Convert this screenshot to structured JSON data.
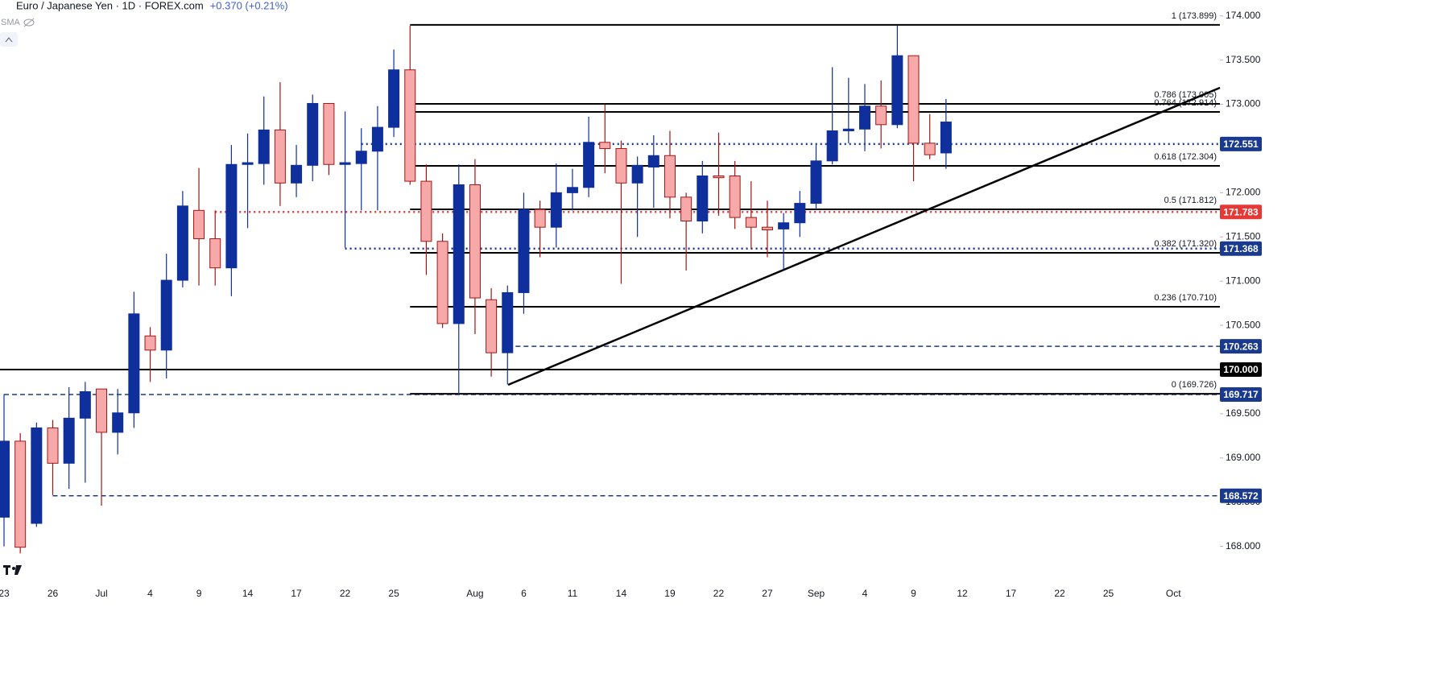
{
  "chart_data": {
    "type": "candlestick",
    "title": "Euro / Japanese Yen · 1D · FOREX.com",
    "change": "+0.370 (+0.21%)",
    "indicator": "SMA",
    "categories": [
      "23",
      null,
      null,
      "26",
      null,
      null,
      "Jul",
      null,
      null,
      "4",
      null,
      null,
      "9",
      null,
      null,
      "14",
      null,
      null,
      "17",
      null,
      null,
      "22",
      null,
      null,
      "25",
      null,
      null,
      null,
      null,
      "Aug",
      null,
      null,
      "6",
      null,
      null,
      "11",
      null,
      null,
      "14",
      null,
      null,
      "19",
      null,
      null,
      "22",
      null,
      null,
      "27",
      null,
      null,
      "Sep",
      null,
      null,
      "4",
      null,
      null,
      "9",
      null,
      null,
      "12",
      null,
      null,
      "17",
      null,
      null,
      "22",
      null,
      null,
      "25",
      null,
      null,
      null,
      "Oct"
    ],
    "open": [
      168.33,
      169.19,
      168.26,
      169.34,
      168.94,
      169.45,
      169.78,
      169.29,
      169.51,
      170.38,
      170.22,
      171.01,
      171.8,
      171.48,
      171.15,
      172.32,
      172.33,
      172.71,
      172.11,
      172.31,
      173.01,
      172.32,
      172.33,
      172.47,
      172.74,
      173.39,
      172.13,
      171.45,
      170.52,
      172.09,
      170.79,
      170.19,
      170.87,
      171.81,
      171.61,
      172.0,
      172.06,
      172.57,
      172.5,
      172.11,
      172.29,
      172.42,
      171.95,
      171.68,
      172.19,
      172.19,
      171.72,
      171.61,
      171.59,
      171.66,
      171.88,
      172.36,
      172.7,
      172.72,
      172.98,
      172.77,
      173.55,
      172.56,
      172.45,
      null,
      null,
      null,
      null,
      null,
      null,
      null,
      null,
      null,
      null,
      null,
      null,
      null,
      null
    ],
    "high": [
      169.72,
      169.28,
      169.4,
      169.43,
      169.8,
      169.86,
      169.78,
      169.78,
      170.88,
      170.48,
      171.31,
      172.02,
      172.28,
      171.8,
      172.54,
      172.67,
      173.09,
      173.25,
      172.54,
      173.11,
      173.01,
      172.92,
      172.73,
      172.98,
      173.62,
      173.89,
      172.32,
      171.54,
      172.32,
      172.38,
      170.92,
      170.95,
      172.0,
      171.91,
      172.33,
      172.27,
      172.86,
      173.0,
      172.59,
      172.41,
      172.65,
      172.7,
      172.0,
      172.36,
      172.68,
      172.36,
      172.13,
      171.91,
      171.77,
      172.02,
      172.54,
      173.42,
      173.3,
      173.23,
      173.27,
      173.89,
      173.55,
      172.89,
      173.06,
      null,
      null,
      null,
      null,
      null,
      null,
      null,
      null,
      null,
      null,
      null,
      null,
      null,
      null
    ],
    "low": [
      168.0,
      167.92,
      168.22,
      168.58,
      168.65,
      168.72,
      168.46,
      169.04,
      169.34,
      169.86,
      169.9,
      170.93,
      170.95,
      170.95,
      170.83,
      171.6,
      172.09,
      171.85,
      171.95,
      172.13,
      172.2,
      171.38,
      171.8,
      171.8,
      172.63,
      172.09,
      171.07,
      170.47,
      169.72,
      170.4,
      169.92,
      169.83,
      170.63,
      171.27,
      171.38,
      171.8,
      171.95,
      172.22,
      170.97,
      171.5,
      171.83,
      171.71,
      171.12,
      171.54,
      171.74,
      171.59,
      171.36,
      171.27,
      171.13,
      171.5,
      171.81,
      172.32,
      172.56,
      172.47,
      172.5,
      172.73,
      172.13,
      172.38,
      172.27,
      null,
      null,
      null,
      null,
      null,
      null,
      null,
      null,
      null,
      null,
      null,
      null,
      null,
      null
    ],
    "close": [
      169.19,
      167.99,
      169.34,
      168.94,
      169.45,
      169.75,
      169.29,
      169.51,
      170.63,
      170.22,
      171.01,
      171.85,
      171.48,
      171.15,
      172.32,
      172.34,
      172.71,
      172.11,
      172.31,
      173.01,
      172.32,
      172.34,
      172.47,
      172.74,
      173.39,
      172.13,
      171.45,
      170.52,
      172.09,
      170.81,
      170.19,
      170.87,
      171.81,
      171.61,
      172.0,
      172.06,
      172.57,
      172.5,
      172.11,
      172.31,
      172.42,
      171.95,
      171.68,
      172.19,
      172.17,
      171.72,
      171.61,
      171.58,
      171.66,
      171.88,
      172.36,
      172.7,
      172.72,
      172.98,
      172.77,
      173.55,
      172.56,
      172.43,
      172.8,
      null,
      null,
      null,
      null,
      null,
      null,
      null,
      null,
      null,
      null,
      null,
      null,
      null,
      null
    ],
    "up_color": "#0f2f9c",
    "down_color": "#f7a9a9",
    "down_edge": "#a31515",
    "ylim": [
      167.55,
      174.18
    ],
    "yticks": [
      {
        "value": 168,
        "label": "168.000"
      },
      {
        "value": 168.5,
        "label": "168.500"
      },
      {
        "value": 169,
        "label": "169.000"
      },
      {
        "value": 169.5,
        "label": "169.500"
      },
      {
        "value": 170,
        "label": "170.000"
      },
      {
        "value": 170.5,
        "label": "170.500"
      },
      {
        "value": 171,
        "label": "171.000"
      },
      {
        "value": 171.5,
        "label": "171.500"
      },
      {
        "value": 172,
        "label": "172.000"
      },
      {
        "value": 172.5,
        "label": "172.500"
      },
      {
        "value": 173,
        "label": "173.000"
      },
      {
        "value": 173.5,
        "label": "173.500"
      },
      {
        "value": 174,
        "label": "174.000"
      }
    ],
    "fib_levels": [
      {
        "value": 173.899,
        "label": "1 (173.899)"
      },
      {
        "value": 173.005,
        "label": "0.786 (173.005)"
      },
      {
        "value": 172.914,
        "label": "0.764 (172.914)"
      },
      {
        "value": 172.304,
        "label": "0.618 (172.304)"
      },
      {
        "value": 171.812,
        "label": "0.5 (171.812)"
      },
      {
        "value": 171.32,
        "label": "0.382 (171.320)"
      },
      {
        "value": 170.71,
        "label": "0.236 (170.710)"
      },
      {
        "value": 169.726,
        "label": "0 (169.726)"
      }
    ],
    "price_lines": [
      {
        "value": 172.551,
        "color": "#1a3a8f",
        "style": "dotted"
      },
      {
        "value": 171.783,
        "color": "#e53935",
        "style": "dotted"
      },
      {
        "value": 171.368,
        "color": "#1a3a8f",
        "style": "dotted"
      },
      {
        "value": 170.263,
        "color": "#1a3a8f",
        "style": "dashed"
      },
      {
        "value": 170,
        "label": "170.000",
        "color": "#000000",
        "style": "solid"
      },
      {
        "value": 169.717,
        "color": "#1a3a8f",
        "style": "dashed"
      },
      {
        "value": 168.572,
        "color": "#1a3a8f",
        "style": "dashed"
      }
    ]
  }
}
